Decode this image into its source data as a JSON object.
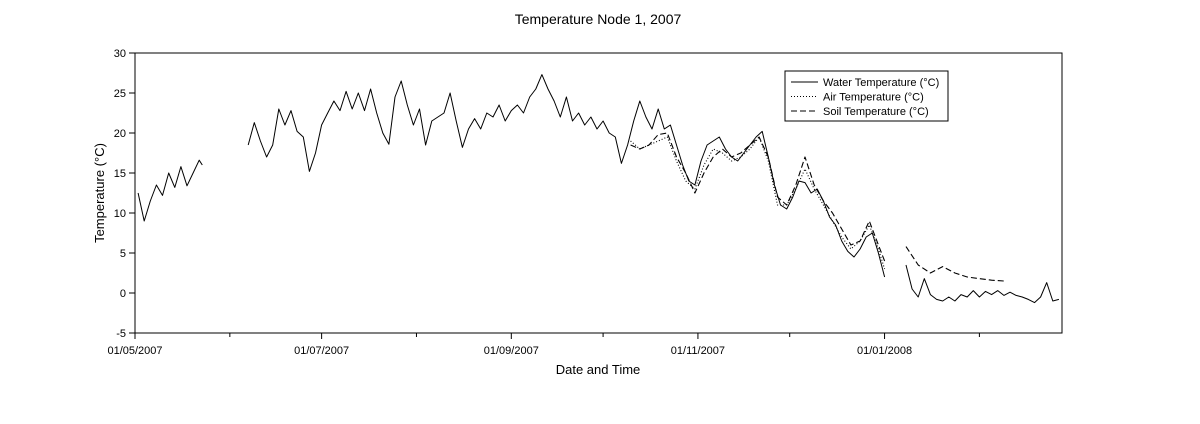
{
  "chart_data": {
    "type": "line",
    "title": "Temperature Node 1, 2007",
    "xlabel": "Date and Time",
    "ylabel": "Temperature (°C)",
    "xlim": [
      "2007-05-01",
      "2008-02-28"
    ],
    "ylim": [
      -5,
      30
    ],
    "x_major_ticks": [
      "2007-05-01",
      "2007-07-01",
      "2007-09-01",
      "2007-11-01",
      "2008-01-01"
    ],
    "x_tick_labels": [
      "01/05/2007",
      "01/07/2007",
      "01/09/2007",
      "01/11/2007",
      "01/01/2008"
    ],
    "x_minor_ticks": [
      "2007-06-01",
      "2007-08-01",
      "2007-10-01",
      "2007-12-01",
      "2008-02-01"
    ],
    "y_ticks": [
      -5,
      0,
      5,
      10,
      15,
      20,
      25,
      30
    ],
    "grid": false,
    "legend_position": "top-right",
    "series": [
      {
        "name": "Water Temperature (°C)",
        "style": "solid",
        "color": "#000000",
        "segments": [
          [
            [
              "2007-05-02",
              12.5
            ],
            [
              "2007-05-04",
              9
            ],
            [
              "2007-05-06",
              11.5
            ],
            [
              "2007-05-08",
              13.5
            ],
            [
              "2007-05-10",
              12.2
            ],
            [
              "2007-05-12",
              15
            ],
            [
              "2007-05-14",
              13.2
            ],
            [
              "2007-05-16",
              15.8
            ],
            [
              "2007-05-18",
              13.4
            ],
            [
              "2007-05-20",
              15
            ],
            [
              "2007-05-22",
              16.6
            ],
            [
              "2007-05-23",
              16
            ]
          ],
          [
            [
              "2007-06-07",
              18.5
            ],
            [
              "2007-06-09",
              21.3
            ],
            [
              "2007-06-11",
              19
            ],
            [
              "2007-06-13",
              17
            ],
            [
              "2007-06-15",
              18.5
            ],
            [
              "2007-06-17",
              23
            ],
            [
              "2007-06-19",
              21
            ],
            [
              "2007-06-21",
              22.8
            ],
            [
              "2007-06-23",
              20.2
            ],
            [
              "2007-06-25",
              19.5
            ],
            [
              "2007-06-27",
              15.2
            ],
            [
              "2007-06-29",
              17.5
            ],
            [
              "2007-07-01",
              21
            ],
            [
              "2007-07-03",
              22.5
            ],
            [
              "2007-07-05",
              24
            ],
            [
              "2007-07-07",
              22.8
            ],
            [
              "2007-07-09",
              25.2
            ],
            [
              "2007-07-11",
              23
            ],
            [
              "2007-07-13",
              25
            ],
            [
              "2007-07-15",
              22.8
            ],
            [
              "2007-07-17",
              25.5
            ],
            [
              "2007-07-19",
              22.5
            ],
            [
              "2007-07-21",
              20
            ],
            [
              "2007-07-23",
              18.6
            ],
            [
              "2007-07-25",
              24.5
            ],
            [
              "2007-07-27",
              26.5
            ],
            [
              "2007-07-29",
              23.5
            ],
            [
              "2007-07-31",
              21
            ],
            [
              "2007-08-02",
              23
            ],
            [
              "2007-08-04",
              18.5
            ],
            [
              "2007-08-06",
              21.5
            ],
            [
              "2007-08-08",
              22
            ],
            [
              "2007-08-10",
              22.5
            ],
            [
              "2007-08-12",
              25
            ],
            [
              "2007-08-14",
              21.5
            ],
            [
              "2007-08-16",
              18.2
            ],
            [
              "2007-08-18",
              20.5
            ],
            [
              "2007-08-20",
              21.8
            ],
            [
              "2007-08-22",
              20.5
            ],
            [
              "2007-08-24",
              22.5
            ],
            [
              "2007-08-26",
              22
            ],
            [
              "2007-08-28",
              23.5
            ],
            [
              "2007-08-30",
              21.5
            ],
            [
              "2007-09-01",
              22.8
            ],
            [
              "2007-09-03",
              23.5
            ],
            [
              "2007-09-05",
              22.5
            ],
            [
              "2007-09-07",
              24.5
            ],
            [
              "2007-09-09",
              25.5
            ],
            [
              "2007-09-11",
              27.3
            ],
            [
              "2007-09-13",
              25.5
            ],
            [
              "2007-09-15",
              24
            ],
            [
              "2007-09-17",
              22
            ],
            [
              "2007-09-19",
              24.5
            ],
            [
              "2007-09-21",
              21.5
            ],
            [
              "2007-09-23",
              22.5
            ],
            [
              "2007-09-25",
              21
            ],
            [
              "2007-09-27",
              22
            ],
            [
              "2007-09-29",
              20.5
            ],
            [
              "2007-10-01",
              21.5
            ],
            [
              "2007-10-03",
              20
            ],
            [
              "2007-10-05",
              19.5
            ],
            [
              "2007-10-07",
              16.2
            ],
            [
              "2007-10-09",
              18.5
            ],
            [
              "2007-10-11",
              21.5
            ],
            [
              "2007-10-13",
              24
            ],
            [
              "2007-10-15",
              22
            ],
            [
              "2007-10-17",
              20.5
            ],
            [
              "2007-10-19",
              23
            ],
            [
              "2007-10-21",
              20.5
            ],
            [
              "2007-10-23",
              21
            ],
            [
              "2007-10-25",
              18.5
            ],
            [
              "2007-10-27",
              16
            ],
            [
              "2007-10-29",
              14
            ],
            [
              "2007-10-31",
              13.5
            ],
            [
              "2007-11-02",
              16.5
            ],
            [
              "2007-11-04",
              18.5
            ],
            [
              "2007-11-06",
              19
            ],
            [
              "2007-11-08",
              19.5
            ],
            [
              "2007-11-10",
              18
            ],
            [
              "2007-11-12",
              17
            ],
            [
              "2007-11-14",
              16.5
            ],
            [
              "2007-11-16",
              17.5
            ],
            [
              "2007-11-18",
              18.5
            ],
            [
              "2007-11-20",
              19.5
            ],
            [
              "2007-11-22",
              20.2
            ],
            [
              "2007-11-24",
              17
            ],
            [
              "2007-11-26",
              13.5
            ],
            [
              "2007-11-28",
              11
            ],
            [
              "2007-11-30",
              10.5
            ],
            [
              "2007-12-02",
              12
            ],
            [
              "2007-12-04",
              14
            ],
            [
              "2007-12-06",
              13.8
            ],
            [
              "2007-12-08",
              12.5
            ],
            [
              "2007-12-10",
              13
            ],
            [
              "2007-12-12",
              11.5
            ],
            [
              "2007-12-14",
              9.5
            ],
            [
              "2007-12-16",
              8.5
            ],
            [
              "2007-12-18",
              6.5
            ],
            [
              "2007-12-20",
              5.2
            ],
            [
              "2007-12-22",
              4.5
            ],
            [
              "2007-12-24",
              5.5
            ],
            [
              "2007-12-26",
              7
            ],
            [
              "2007-12-28",
              7.5
            ],
            [
              "2007-12-30",
              5
            ],
            [
              "2008-01-01",
              2
            ]
          ],
          [
            [
              "2008-01-08",
              3.5
            ],
            [
              "2008-01-10",
              0.5
            ],
            [
              "2008-01-12",
              -0.5
            ],
            [
              "2008-01-14",
              1.8
            ],
            [
              "2008-01-16",
              -0.2
            ],
            [
              "2008-01-18",
              -0.8
            ],
            [
              "2008-01-20",
              -1
            ],
            [
              "2008-01-22",
              -0.5
            ],
            [
              "2008-01-24",
              -1
            ],
            [
              "2008-01-26",
              -0.2
            ],
            [
              "2008-01-28",
              -0.5
            ],
            [
              "2008-01-30",
              0.3
            ],
            [
              "2008-02-01",
              -0.5
            ],
            [
              "2008-02-03",
              0.2
            ],
            [
              "2008-02-05",
              -0.2
            ],
            [
              "2008-02-07",
              0.3
            ],
            [
              "2008-02-09",
              -0.3
            ],
            [
              "2008-02-11",
              0.1
            ],
            [
              "2008-02-13",
              -0.3
            ],
            [
              "2008-02-15",
              -0.5
            ],
            [
              "2008-02-17",
              -0.8
            ],
            [
              "2008-02-19",
              -1.2
            ],
            [
              "2008-02-21",
              -0.5
            ],
            [
              "2008-02-23",
              1.3
            ],
            [
              "2008-02-25",
              -1
            ],
            [
              "2008-02-27",
              -0.8
            ]
          ]
        ]
      },
      {
        "name": "Air Temperature (°C)",
        "style": "dotted",
        "color": "#000000",
        "segments": [
          [
            [
              "2007-10-10",
              19
            ],
            [
              "2007-10-13",
              18
            ],
            [
              "2007-10-16",
              18.5
            ],
            [
              "2007-10-19",
              19
            ],
            [
              "2007-10-22",
              19.5
            ],
            [
              "2007-10-25",
              16.5
            ],
            [
              "2007-10-28",
              14
            ],
            [
              "2007-10-31",
              13
            ],
            [
              "2007-11-03",
              16
            ],
            [
              "2007-11-06",
              18
            ],
            [
              "2007-11-09",
              17.5
            ],
            [
              "2007-11-12",
              16.5
            ],
            [
              "2007-11-15",
              17
            ],
            [
              "2007-11-18",
              18
            ],
            [
              "2007-11-21",
              19.5
            ],
            [
              "2007-11-24",
              16.5
            ],
            [
              "2007-11-27",
              11
            ],
            [
              "2007-11-30",
              11
            ],
            [
              "2007-12-03",
              13
            ],
            [
              "2007-12-06",
              15.5
            ],
            [
              "2007-12-09",
              13
            ],
            [
              "2007-12-12",
              11
            ],
            [
              "2007-12-15",
              9
            ],
            [
              "2007-12-18",
              7
            ],
            [
              "2007-12-21",
              5.5
            ],
            [
              "2007-12-24",
              6.5
            ],
            [
              "2007-12-27",
              8.5
            ],
            [
              "2007-12-30",
              5.5
            ],
            [
              "2008-01-01",
              3
            ]
          ]
        ]
      },
      {
        "name": "Soil Temperature (°C)",
        "style": "dashed",
        "color": "#000000",
        "segments": [
          [
            [
              "2007-10-10",
              18.5
            ],
            [
              "2007-10-13",
              18
            ],
            [
              "2007-10-16",
              18.5
            ],
            [
              "2007-10-19",
              19.8
            ],
            [
              "2007-10-22",
              20
            ],
            [
              "2007-10-25",
              17
            ],
            [
              "2007-10-28",
              15
            ],
            [
              "2007-10-31",
              12.5
            ],
            [
              "2007-11-03",
              15
            ],
            [
              "2007-11-06",
              17
            ],
            [
              "2007-11-09",
              18
            ],
            [
              "2007-11-12",
              17
            ],
            [
              "2007-11-15",
              17.5
            ],
            [
              "2007-11-18",
              18.5
            ],
            [
              "2007-11-21",
              19.5
            ],
            [
              "2007-11-24",
              17
            ],
            [
              "2007-11-27",
              12
            ],
            [
              "2007-11-30",
              11
            ],
            [
              "2007-12-03",
              13.5
            ],
            [
              "2007-12-06",
              17
            ],
            [
              "2007-12-09",
              13.5
            ],
            [
              "2007-12-12",
              11.5
            ],
            [
              "2007-12-15",
              10
            ],
            [
              "2007-12-18",
              8
            ],
            [
              "2007-12-21",
              6
            ],
            [
              "2007-12-24",
              6.5
            ],
            [
              "2007-12-27",
              9
            ],
            [
              "2007-12-30",
              6
            ],
            [
              "2008-01-01",
              4
            ]
          ],
          [
            [
              "2008-01-08",
              5.8
            ],
            [
              "2008-01-12",
              3.5
            ],
            [
              "2008-01-16",
              2.5
            ],
            [
              "2008-01-20",
              3.3
            ],
            [
              "2008-01-24",
              2.5
            ],
            [
              "2008-01-28",
              2
            ],
            [
              "2008-02-01",
              1.8
            ],
            [
              "2008-02-05",
              1.6
            ],
            [
              "2008-02-09",
              1.5
            ]
          ]
        ]
      }
    ]
  }
}
